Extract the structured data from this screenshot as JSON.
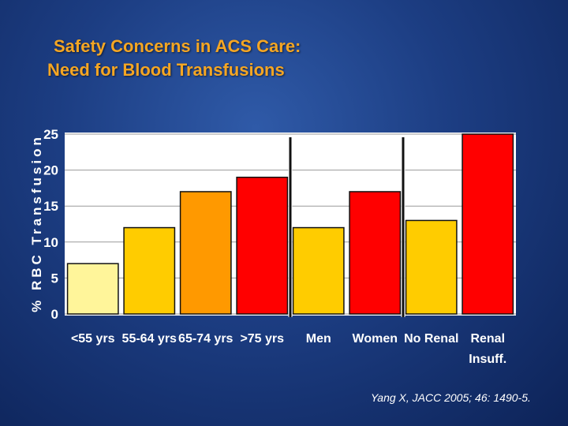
{
  "title": {
    "line1": "Safety Concerns in ACS Care:",
    "line2": "Need for Blood Transfusions"
  },
  "citation": "Yang X, JACC 2005; 46: 1490-5.",
  "chart_data": {
    "type": "bar",
    "title": "Safety Concerns in ACS Care: Need for Blood Transfusions",
    "xlabel": "",
    "ylabel": "% RBC Transfusion",
    "ylim": [
      0,
      25
    ],
    "yticks": [
      0,
      5,
      10,
      15,
      20,
      25
    ],
    "grid": true,
    "legend": "none",
    "categories": [
      {
        "lines": [
          "<55 yrs"
        ]
      },
      {
        "lines": [
          "55-64 yrs"
        ]
      },
      {
        "lines": [
          "65-74 yrs"
        ]
      },
      {
        "lines": [
          ">75 yrs"
        ]
      },
      {
        "lines": [
          "Men"
        ]
      },
      {
        "lines": [
          "Women"
        ]
      },
      {
        "lines": [
          "No Renal"
        ]
      },
      {
        "lines": [
          "Renal",
          "Insuff."
        ]
      }
    ],
    "values": [
      7,
      12,
      17,
      19,
      12,
      17,
      13,
      25
    ],
    "colors": [
      "#fff59a",
      "#ffcc00",
      "#ff9900",
      "#ff0000",
      "#ffcc00",
      "#ff0000",
      "#ffcc00",
      "#ff0000"
    ],
    "group_separators_after": [
      3,
      5
    ]
  }
}
